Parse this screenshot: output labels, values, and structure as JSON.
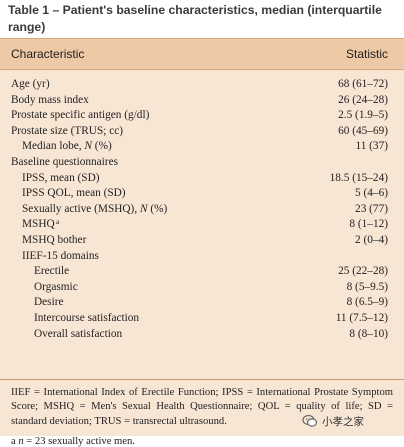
{
  "table": {
    "caption": "Table 1 – Patient's baseline characteristics, median (interquartile range)",
    "header": {
      "characteristic": "Characteristic",
      "statistic": "Statistic"
    },
    "rows": [
      {
        "label": "Age (yr)",
        "value": "68 (61–72)",
        "level": 0
      },
      {
        "label": "Body mass index",
        "value": "26 (24–28)",
        "level": 0
      },
      {
        "label": "Prostate specific antigen (g/dl)",
        "value": "2.5 (1.9–5)",
        "level": 0
      },
      {
        "label": "Prostate size (TRUS; cc)",
        "value": "60 (45–69)",
        "level": 0
      },
      {
        "label": "Median lobe, N (%)",
        "value": "11 (37)",
        "level": 1
      },
      {
        "label": "Baseline questionnaires",
        "value": "",
        "level": 0
      },
      {
        "label": "IPSS, mean (SD)",
        "value": "18.5 (15–24)",
        "level": 1
      },
      {
        "label": "IPSS QOL, mean (SD)",
        "value": "5 (4–6)",
        "level": 1
      },
      {
        "label": "Sexually active (MSHQ), N (%)",
        "value": "23 (77)",
        "level": 1
      },
      {
        "label": "MSHQ",
        "sup": "a",
        "value": "8 (1–12)",
        "level": 1
      },
      {
        "label": "MSHQ bother",
        "value": "2 (0–4)",
        "level": 1
      },
      {
        "label": "IIEF-15 domains",
        "value": "",
        "level": 1
      },
      {
        "label": "Erectile",
        "value": "25 (22–28)",
        "level": 2
      },
      {
        "label": "Orgasmic",
        "value": "8 (5–9.5)",
        "level": 2
      },
      {
        "label": "Desire",
        "value": "8 (6.5–9)",
        "level": 2
      },
      {
        "label": "Intercourse satisfaction",
        "value": "11 (7.5–12)",
        "level": 2
      },
      {
        "label": "Overall satisfaction",
        "value": "8 (8–10)",
        "level": 2
      }
    ],
    "footnote": "IIEF = International Index of Erectile Function; IPSS = International Prostate Symptom Score; MSHQ = Men's Sexual Health Questionnaire; QOL = quality of life; SD = standard deviation; TRUS = transrectal ultrasound.",
    "footnote_a_mark": "a",
    "footnote_a_text": "n = 23 sexually active men."
  },
  "watermark": {
    "text": "小孝之家",
    "icon": "wechat-icon"
  }
}
